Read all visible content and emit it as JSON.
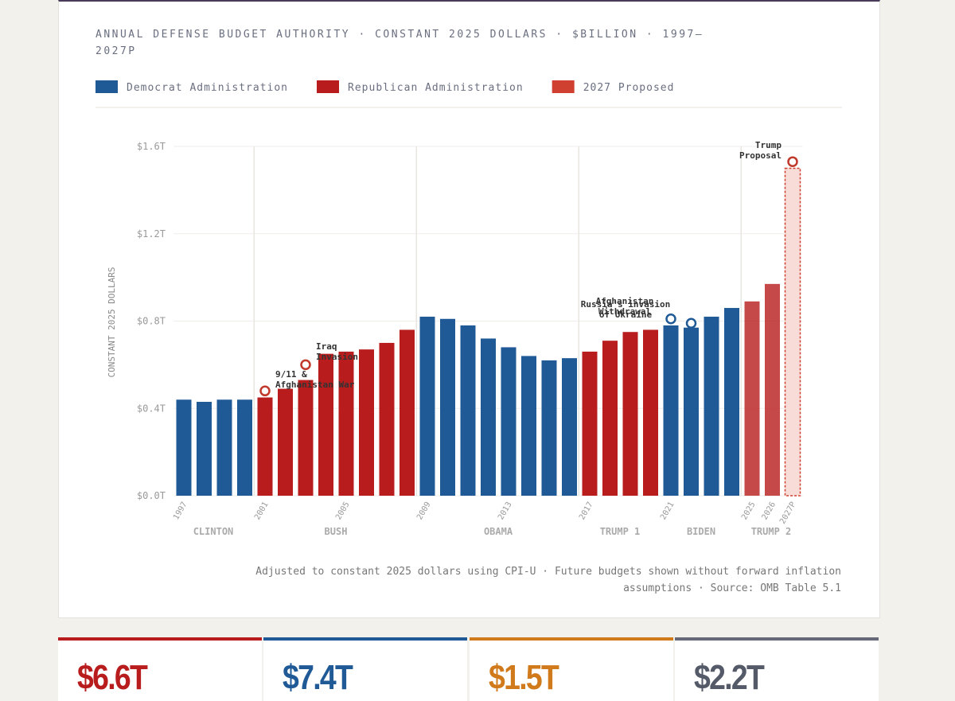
{
  "chart_data": {
    "type": "bar",
    "title": "ANNUAL DEFENSE BUDGET AUTHORITY · CONSTANT 2025 DOLLARS · $BILLION · 1997–2027P",
    "y_label": "CONSTANT 2025 DOLLARS",
    "categories": [
      "1997",
      null,
      null,
      null,
      "2001",
      null,
      null,
      null,
      "2005",
      null,
      null,
      null,
      "2009",
      null,
      null,
      null,
      "2013",
      null,
      null,
      null,
      "2017",
      null,
      null,
      null,
      "2021",
      null,
      null,
      null,
      "2025",
      "2026",
      "2027P"
    ],
    "series": [
      {
        "name": "Democrat Administration",
        "color": "#1f5a96",
        "values": [
          0.44,
          0.43,
          0.44,
          0.44,
          null,
          null,
          null,
          null,
          null,
          null,
          null,
          null,
          0.82,
          0.81,
          0.78,
          0.72,
          0.68,
          0.64,
          0.62,
          0.63,
          null,
          null,
          null,
          null,
          0.78,
          0.77,
          0.82,
          0.86,
          null,
          null,
          null
        ]
      },
      {
        "name": "Republican Administration",
        "color": "#b81c1c",
        "values": [
          null,
          null,
          null,
          null,
          0.45,
          0.49,
          0.53,
          0.65,
          0.66,
          0.67,
          0.7,
          0.76,
          null,
          null,
          null,
          null,
          null,
          null,
          null,
          null,
          0.66,
          0.71,
          0.75,
          0.76,
          null,
          null,
          null,
          null,
          0.89,
          0.97,
          null
        ]
      },
      {
        "name": "2027 Proposed",
        "color": "#d04030",
        "values": [
          null,
          null,
          null,
          null,
          null,
          null,
          null,
          null,
          null,
          null,
          null,
          null,
          null,
          null,
          null,
          null,
          null,
          null,
          null,
          null,
          null,
          null,
          null,
          null,
          null,
          null,
          null,
          null,
          null,
          null,
          1.5
        ]
      }
    ],
    "ylim": [
      0,
      1.6
    ],
    "yticks": [
      {
        "value": 0,
        "label": "$0.0T"
      },
      {
        "value": 0.4,
        "label": "$0.4T"
      },
      {
        "value": 0.8,
        "label": "$0.8T"
      },
      {
        "value": 1.2,
        "label": "$1.2T"
      },
      {
        "value": 1.6,
        "label": "$1.6T"
      }
    ],
    "grid": true,
    "periods": [
      "CLINTON",
      "BUSH",
      "OBAMA",
      "TRUMP 1",
      "BIDEN",
      "TRUMP 2"
    ],
    "annotations": [
      {
        "lines": [
          "9/11 &",
          "Afghanistan War"
        ],
        "value": 0.48
      },
      {
        "lines": [
          "Iraq",
          "Invasion"
        ],
        "value": 0.6
      },
      {
        "lines": [
          "Afghanistan",
          "Withdrawal"
        ],
        "value": 0.81
      },
      {
        "lines": [
          "Russia's invasion",
          "of Ukraine"
        ],
        "value": 0.79
      },
      {
        "lines": [
          "Trump",
          "Proposal"
        ],
        "value": 1.53
      }
    ],
    "note": "Adjusted to constant 2025 dollars using CPI-U · Future budgets shown without forward inflation assumptions · Source: OMB Table 5.1"
  },
  "stats": [
    "$6.6T",
    "$7.4T",
    "$1.5T",
    "$2.2T"
  ]
}
